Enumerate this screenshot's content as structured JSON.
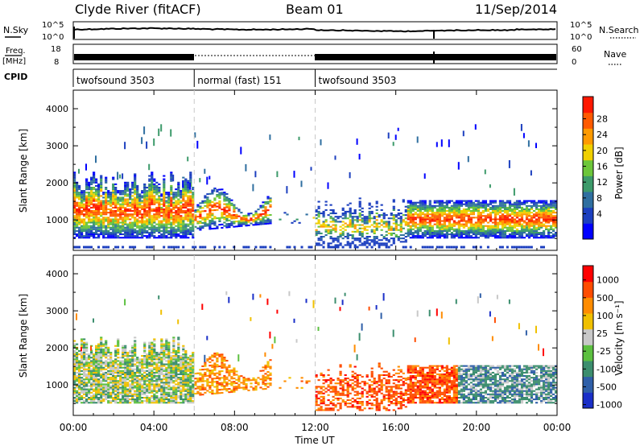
{
  "header": {
    "site": "Clyde River (fitACF)",
    "beam": "Beam 01",
    "date": "11/Sep/2014"
  },
  "status_panels": {
    "nsky": {
      "label": "N.Sky",
      "ticks": [
        "10^5",
        "10^0"
      ]
    },
    "nsearch": {
      "label": "N.Search",
      "ticks": [
        "10^5",
        "10^0"
      ]
    },
    "freq": {
      "label_top": "Freq.",
      "label_bottom": "[MHz]",
      "ticks": [
        "18",
        "8"
      ]
    },
    "nave": {
      "label": "Nave",
      "ticks": [
        "60",
        "0"
      ]
    },
    "cpid": {
      "label": "CPID",
      "segments": [
        {
          "name": "twofsound 3503",
          "start_hour": 0,
          "end_hour": 6
        },
        {
          "name": "normal (fast) 151",
          "start_hour": 6,
          "end_hour": 12
        },
        {
          "name": "twofsound 3503",
          "start_hour": 12,
          "end_hour": 24
        }
      ]
    }
  },
  "x_axis": {
    "label": "Time UT",
    "ticks": [
      "00:00",
      "04:00",
      "08:00",
      "12:00",
      "16:00",
      "20:00",
      "00:00"
    ]
  },
  "chart_data": [
    {
      "type": "heatmap",
      "title": "",
      "xlabel": "Time UT",
      "ylabel": "Slant Range [km]",
      "xlim": [
        0,
        24
      ],
      "ylim": [
        180,
        4500
      ],
      "yticks": [
        1000,
        2000,
        3000,
        4000
      ],
      "colorbar": {
        "label": "Power [dB]",
        "ticks": [
          "4",
          "8",
          "12",
          "16",
          "20",
          "24",
          "28"
        ],
        "colors": [
          "#0000ff",
          "#1c3fbf",
          "#2f6fa0",
          "#3c9a6a",
          "#6cc63a",
          "#f0d000",
          "#ff9a00",
          "#ff5a00",
          "#ff1800"
        ]
      }
    },
    {
      "type": "heatmap",
      "title": "",
      "xlabel": "Time UT",
      "ylabel": "Slant Range [km]",
      "xlim": [
        0,
        24
      ],
      "ylim": [
        180,
        4500
      ],
      "yticks": [
        1000,
        2000,
        3000,
        4000
      ],
      "colorbar": {
        "label": "Velocity [m s⁻¹]",
        "ticks": [
          "1000",
          "500",
          "100",
          "25",
          "-25",
          "-100",
          "-500",
          "-1000"
        ],
        "colors": [
          "#1a2fc8",
          "#2f5fa8",
          "#3c8e6e",
          "#5cc040",
          "#c8c8c8",
          "#f0c000",
          "#ff8c00",
          "#ff4c00",
          "#ff0000"
        ]
      }
    }
  ]
}
